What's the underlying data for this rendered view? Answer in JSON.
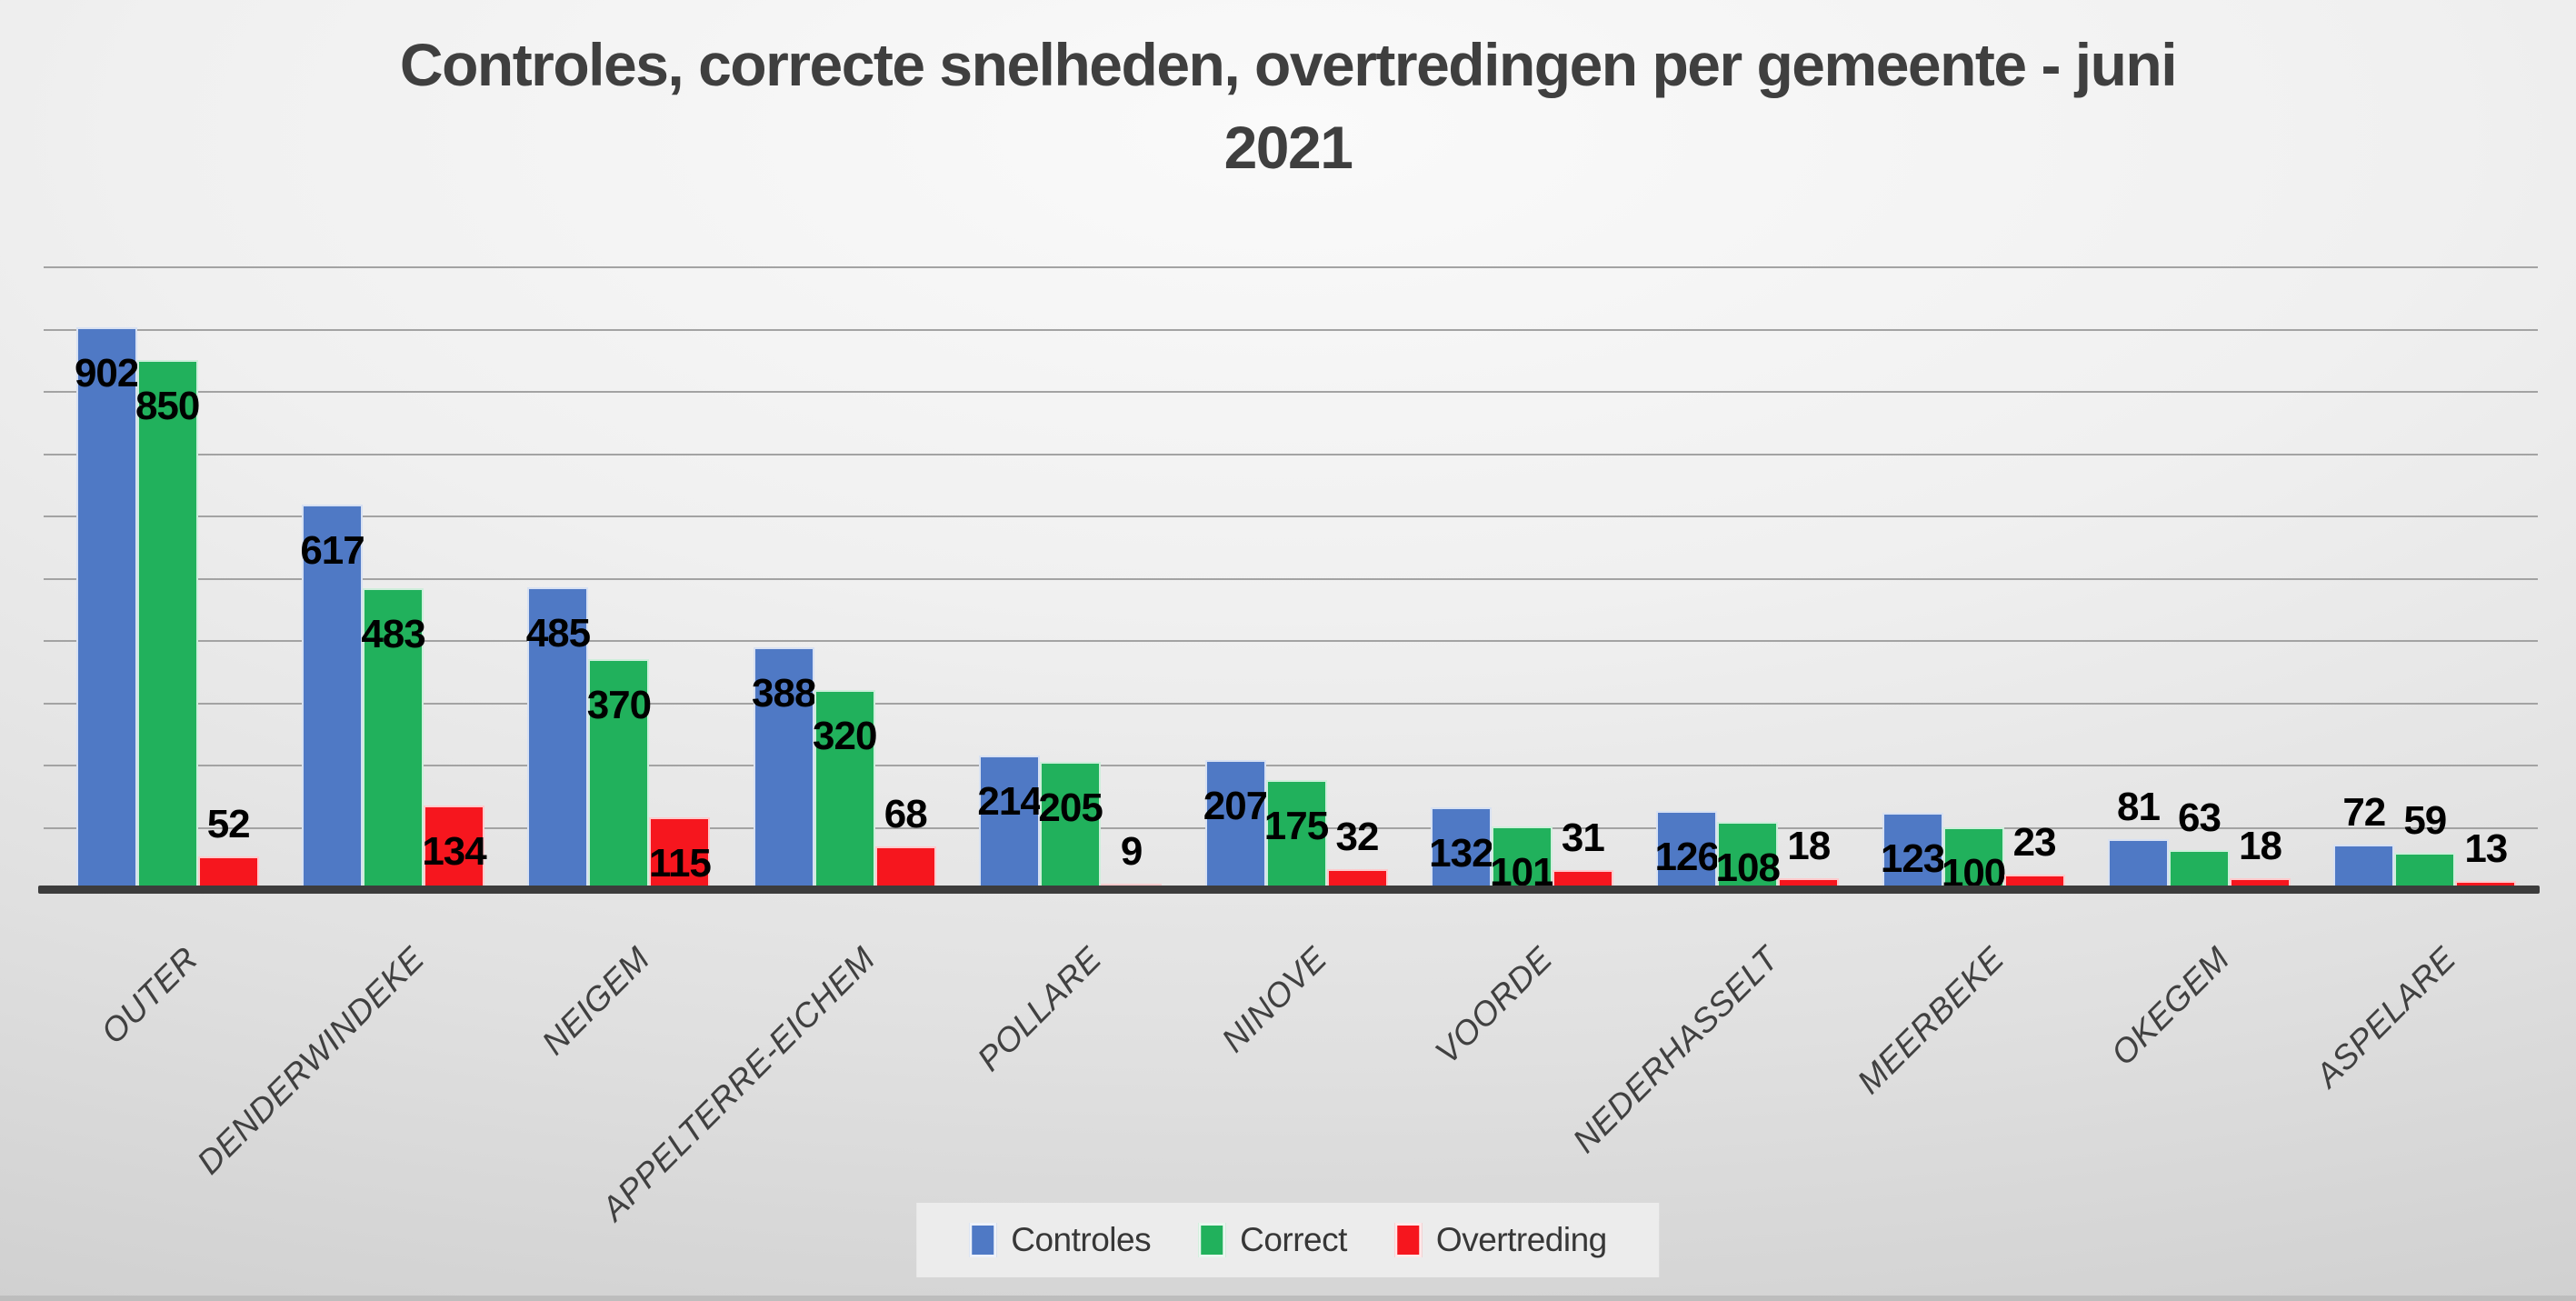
{
  "chart_data": {
    "type": "bar",
    "title": {
      "line1": "Controles, correcte snelheden, overtredingen per gemeente - juni",
      "line2": "2021"
    },
    "categories": [
      "OUTER",
      "DENDERWINDEKE",
      "NEIGEM",
      "APPELTERRE-EICHEM",
      "POLLARE",
      "NINOVE",
      "VOORDE",
      "NEDERHASSELT",
      "MEERBEKE",
      "OKEGEM",
      "ASPELARE"
    ],
    "series": [
      {
        "name": "Controles",
        "color": "#4f79c5",
        "values": [
          902,
          617,
          485,
          388,
          214,
          207,
          132,
          126,
          123,
          81,
          72
        ]
      },
      {
        "name": "Correct",
        "color": "#21b15c",
        "values": [
          850,
          483,
          370,
          320,
          205,
          175,
          101,
          108,
          100,
          63,
          59
        ]
      },
      {
        "name": "Overtreding",
        "color": "#f6161e",
        "values": [
          52,
          134,
          115,
          68,
          9,
          32,
          31,
          18,
          23,
          18,
          13
        ]
      }
    ],
    "ylim": [
      0,
      1000
    ],
    "gridline_step": 100,
    "grid": true,
    "value_labels": true,
    "legend_position": "bottom",
    "axis_color": "#3c3c3c",
    "gridline_color": "#a3a3a3"
  }
}
